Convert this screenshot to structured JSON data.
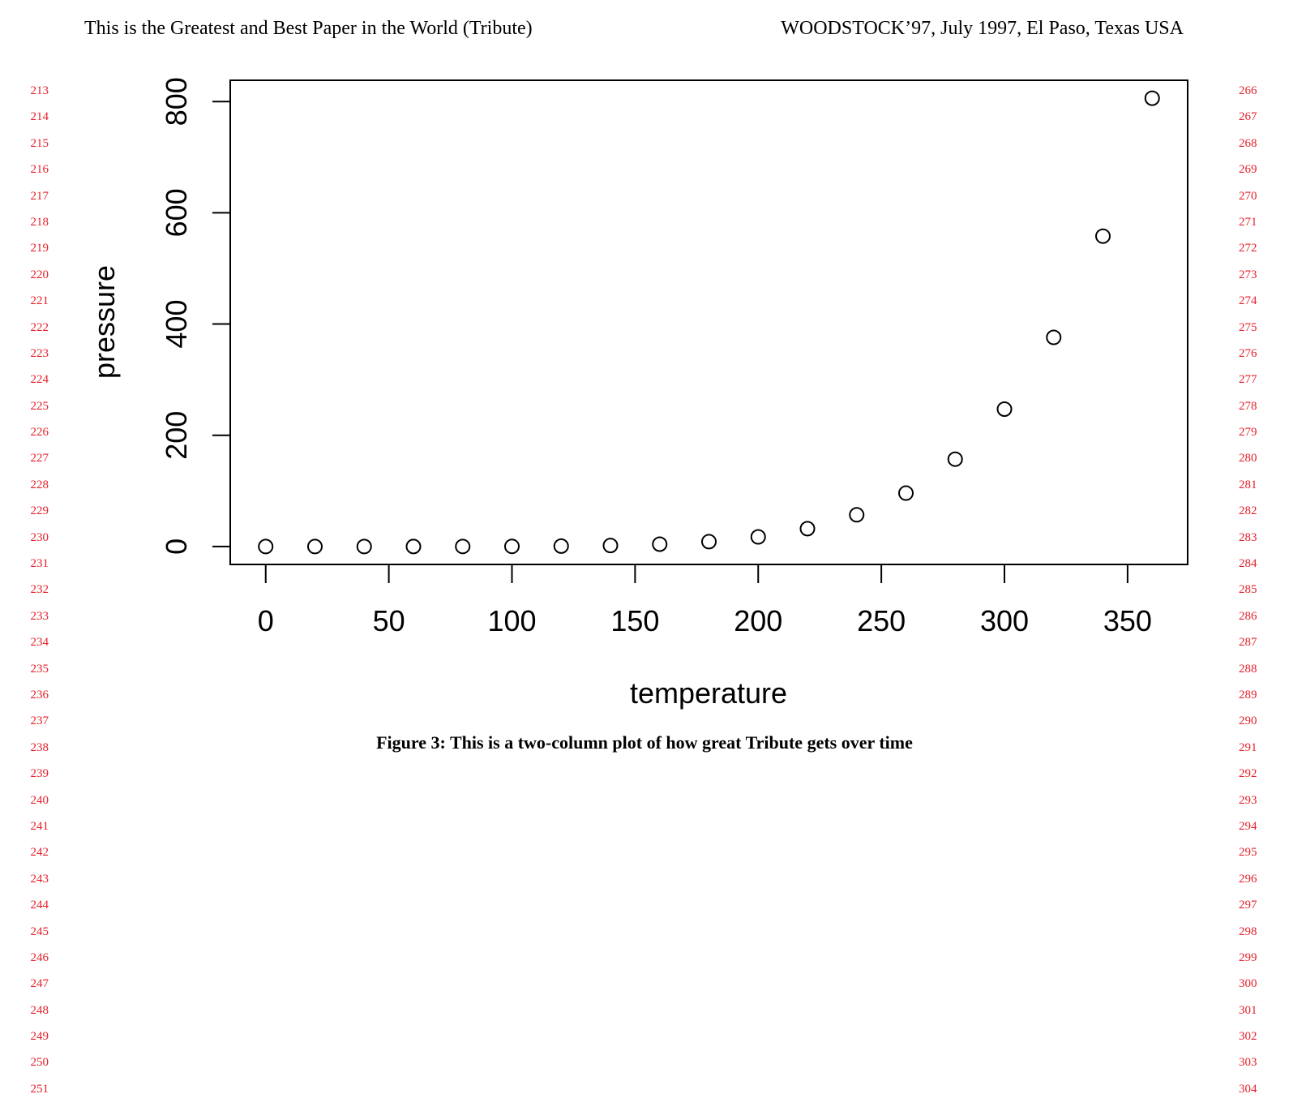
{
  "header": {
    "left": "This is the Greatest and Best Paper in the World (Tribute)",
    "right": "WOODSTOCK’97, July 1997, El Paso, Texas USA"
  },
  "line_numbers": {
    "left": [
      "213",
      "214",
      "215",
      "216",
      "217",
      "218",
      "219",
      "220",
      "221",
      "222",
      "223",
      "224",
      "225",
      "226",
      "227",
      "228",
      "229",
      "230",
      "231",
      "232",
      "233",
      "234",
      "235",
      "236",
      "237",
      "238",
      "239",
      "240",
      "241",
      "242",
      "243",
      "244",
      "245",
      "246",
      "247",
      "248",
      "249",
      "250",
      "251"
    ],
    "right": [
      "266",
      "267",
      "268",
      "269",
      "270",
      "271",
      "272",
      "273",
      "274",
      "275",
      "276",
      "277",
      "278",
      "279",
      "280",
      "281",
      "282",
      "283",
      "284",
      "285",
      "286",
      "287",
      "288",
      "289",
      "290",
      "291",
      "292",
      "293",
      "294",
      "295",
      "296",
      "297",
      "298",
      "299",
      "300",
      "301",
      "302",
      "303",
      "304"
    ],
    "color": "#e4202a"
  },
  "chart_data": {
    "type": "scatter",
    "xlabel": "temperature",
    "ylabel": "pressure",
    "x": [
      0,
      20,
      40,
      60,
      80,
      100,
      120,
      140,
      160,
      180,
      200,
      220,
      240,
      260,
      280,
      300,
      320,
      340,
      360
    ],
    "y": [
      0.0002,
      0.0012,
      0.006,
      0.03,
      0.09,
      0.27,
      0.75,
      1.85,
      4.2,
      8.8,
      17.3,
      32.1,
      57,
      96,
      157,
      247,
      376,
      558,
      806
    ],
    "xticks": [
      "0",
      "50",
      "100",
      "150",
      "200",
      "250",
      "300",
      "350"
    ],
    "yticks": [
      "0",
      "200",
      "400",
      "600",
      "800"
    ],
    "xlim": [
      -14.4,
      374.4
    ],
    "ylim": [
      -32.24,
      838.24
    ],
    "marker": "open-circle",
    "grid": false
  },
  "caption": "Figure 3: This is a two-column plot of how great Tribute gets over time"
}
